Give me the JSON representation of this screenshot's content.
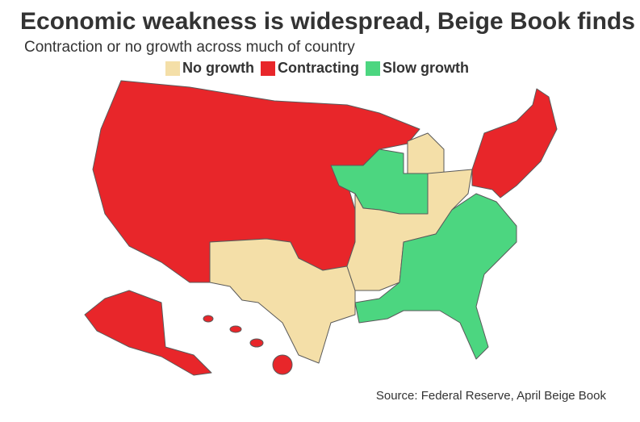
{
  "header": {
    "title": "Economic weakness is widespread, Beige Book finds",
    "subtitle": "Contraction or no growth across much of country"
  },
  "legend": [
    {
      "label": "No growth",
      "color": "#f4dfa8"
    },
    {
      "label": "Contracting",
      "color": "#e8262a"
    },
    {
      "label": "Slow growth",
      "color": "#4cd680"
    }
  ],
  "footer": {
    "source": "Source: Federal Reserve, April Beige Book"
  }
}
